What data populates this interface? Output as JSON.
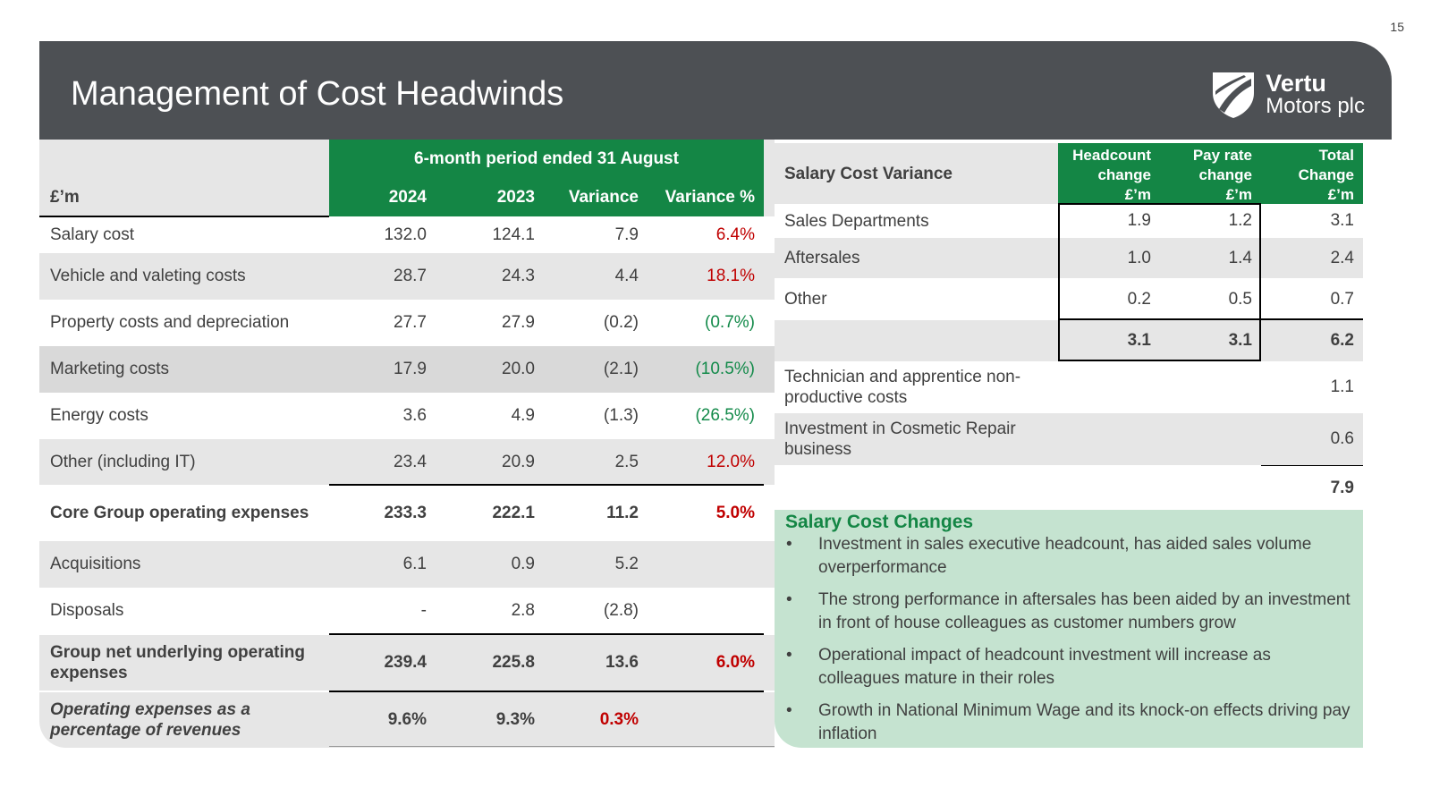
{
  "page_number": "15",
  "header": {
    "title": "Management of Cost Headwinds",
    "logo_line1": "Vertu",
    "logo_line2": "Motors plc"
  },
  "colors": {
    "header_bg": "#4d5054",
    "green": "#148645",
    "red": "#c00000",
    "light_green": "#c5e3d0"
  },
  "left_table": {
    "period_header": "6-month period ended 31 August",
    "unit_label": "£’m",
    "columns": [
      "2024",
      "2023",
      "Variance",
      "Variance %"
    ],
    "rows": [
      {
        "label": "Salary cost",
        "v2024": "132.0",
        "v2023": "124.1",
        "variance": "7.9",
        "variance_pct": "6.4%"
      },
      {
        "label": "Vehicle and valeting costs",
        "v2024": "28.7",
        "v2023": "24.3",
        "variance": "4.4",
        "variance_pct": "18.1%"
      },
      {
        "label": "Property costs and depreciation",
        "v2024": "27.7",
        "v2023": "27.9",
        "variance": "(0.2)",
        "variance_pct": "(0.7%)"
      },
      {
        "label": "Marketing costs",
        "v2024": "17.9",
        "v2023": "20.0",
        "variance": "(2.1)",
        "variance_pct": "(10.5%)"
      },
      {
        "label": "Energy costs",
        "v2024": "3.6",
        "v2023": "4.9",
        "variance": "(1.3)",
        "variance_pct": "(26.5%)"
      },
      {
        "label": "Other (including IT)",
        "v2024": "23.4",
        "v2023": "20.9",
        "variance": "2.5",
        "variance_pct": "12.0%"
      },
      {
        "label": "Core Group operating expenses",
        "v2024": "233.3",
        "v2023": "222.1",
        "variance": "11.2",
        "variance_pct": "5.0%"
      },
      {
        "label": "Acquisitions",
        "v2024": "6.1",
        "v2023": "0.9",
        "variance": "5.2",
        "variance_pct": ""
      },
      {
        "label": "Disposals",
        "v2024": "-",
        "v2023": "2.8",
        "variance": "(2.8)",
        "variance_pct": ""
      },
      {
        "label": "Group net underlying operating expenses",
        "v2024": "239.4",
        "v2023": "225.8",
        "variance": "13.6",
        "variance_pct": "6.0%"
      },
      {
        "label": "Operating expenses as a percentage of revenues",
        "v2024": "9.6%",
        "v2023": "9.3%",
        "variance": "0.3%",
        "variance_pct": ""
      }
    ]
  },
  "right_table": {
    "title": "Salary Cost Variance",
    "columns": [
      "Headcount change £’m",
      "Pay rate change £’m",
      "Total Change £’m"
    ],
    "col_lines": [
      [
        "Headcount",
        "change",
        "£’m"
      ],
      [
        "Pay rate",
        "change",
        "£’m"
      ],
      [
        "Total",
        "Change",
        "£’m"
      ]
    ],
    "rows": [
      {
        "label": "Sales Departments",
        "headcount": "1.9",
        "pay_rate": "1.2",
        "total": "3.1"
      },
      {
        "label": "Aftersales",
        "headcount": "1.0",
        "pay_rate": "1.4",
        "total": "2.4"
      },
      {
        "label": "Other",
        "headcount": "0.2",
        "pay_rate": "0.5",
        "total": "0.7"
      },
      {
        "label": "",
        "headcount": "3.1",
        "pay_rate": "3.1",
        "total": "6.2"
      },
      {
        "label": "Technician and apprentice non-productive costs",
        "headcount": "",
        "pay_rate": "",
        "total": "1.1"
      },
      {
        "label": "Investment in Cosmetic Repair business",
        "headcount": "",
        "pay_rate": "",
        "total": "0.6"
      },
      {
        "label": "",
        "headcount": "",
        "pay_rate": "",
        "total": "7.9"
      }
    ]
  },
  "notes": {
    "title": "Salary Cost Changes",
    "bullet_glyph": "•",
    "items": [
      "Investment in sales executive headcount, has aided sales volume overperformance",
      "The strong performance in aftersales has been aided by an investment in front of house colleagues as customer numbers grow",
      "Operational impact of headcount investment will increase as colleagues mature in their roles",
      "Growth in National Minimum Wage and its knock-on effects driving pay inflation"
    ]
  }
}
